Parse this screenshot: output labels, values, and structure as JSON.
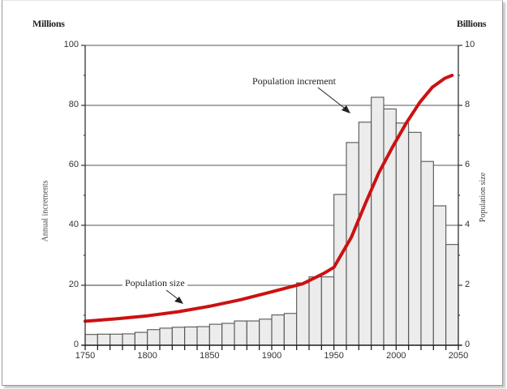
{
  "chart_data": {
    "type": "bar+line",
    "title": "",
    "left_unit": "Millions",
    "right_unit": "Billions",
    "ylabel_left": "Annual increments",
    "ylabel_right": "Population size",
    "xlabel": "",
    "xlim": [
      1750,
      2050
    ],
    "ylim_left": [
      0,
      100
    ],
    "ylim_right": [
      0,
      10
    ],
    "x_ticks": [
      "1750",
      "1800",
      "1850",
      "1900",
      "1950",
      "2000",
      "2050"
    ],
    "y_ticks_left": [
      "0",
      "20",
      "40",
      "60",
      "80",
      "100"
    ],
    "y_ticks_right": [
      "0",
      "2",
      "4",
      "6",
      "8",
      "10"
    ],
    "grid": "horizontal at 20/40/60/80/100",
    "categories": [
      "1750",
      "1760",
      "1770",
      "1780",
      "1790",
      "1800",
      "1810",
      "1820",
      "1830",
      "1840",
      "1850",
      "1860",
      "1870",
      "1880",
      "1890",
      "1900",
      "1910",
      "1920",
      "1930",
      "1940",
      "1950",
      "1960",
      "1970",
      "1980",
      "1990",
      "2000",
      "2010",
      "2020",
      "2030",
      "2040"
    ],
    "series": [
      {
        "name": "Population increment",
        "type": "bar",
        "axis": "left",
        "unit": "millions per year",
        "values": [
          3.6,
          3.7,
          3.7,
          3.8,
          4.3,
          5.2,
          5.7,
          6.0,
          6.1,
          6.2,
          7.0,
          7.3,
          8.1,
          8.1,
          8.7,
          10.1,
          10.6,
          20.8,
          22.8,
          22.8,
          50.3,
          67.6,
          74.4,
          82.7,
          78.8,
          74.1,
          71.0,
          61.3,
          46.5,
          33.6
        ]
      },
      {
        "name": "Population size",
        "type": "line",
        "axis": "right",
        "unit": "billions",
        "x": [
          1750,
          1775,
          1800,
          1825,
          1850,
          1875,
          1900,
          1925,
          1942,
          1950,
          1964,
          1975,
          1986,
          1997,
          2008,
          2019,
          2029,
          2039,
          2045
        ],
        "values": [
          0.8,
          0.88,
          0.98,
          1.12,
          1.3,
          1.52,
          1.78,
          2.05,
          2.4,
          2.6,
          3.6,
          4.7,
          5.75,
          6.6,
          7.4,
          8.1,
          8.6,
          8.9,
          9.0
        ]
      }
    ],
    "annotations": [
      {
        "text": "Population increment",
        "points_to": "bars near 1970"
      },
      {
        "text": "Population size",
        "points_to": "line near 1810"
      }
    ],
    "colors": {
      "bar_fill": "#ececec",
      "bar_edge": "#555555",
      "line": "#cc1111",
      "grid": "#777777"
    }
  }
}
